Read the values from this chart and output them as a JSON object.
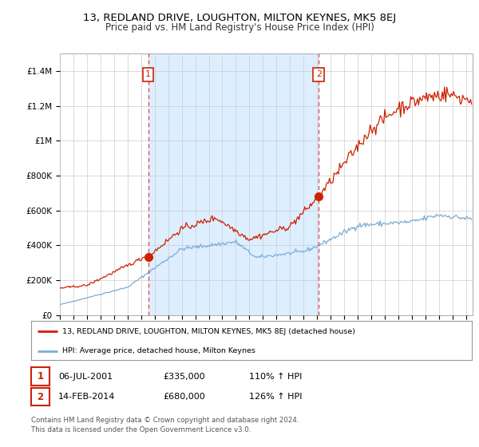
{
  "title": "13, REDLAND DRIVE, LOUGHTON, MILTON KEYNES, MK5 8EJ",
  "subtitle": "Price paid vs. HM Land Registry's House Price Index (HPI)",
  "ylabel_ticks": [
    "£0",
    "£200K",
    "£400K",
    "£600K",
    "£800K",
    "£1M",
    "£1.2M",
    "£1.4M"
  ],
  "ytick_vals": [
    0,
    200000,
    400000,
    600000,
    800000,
    1000000,
    1200000,
    1400000
  ],
  "ylim": [
    0,
    1500000
  ],
  "sale1_date": 2001.52,
  "sale1_price": 335000,
  "sale2_date": 2014.12,
  "sale2_price": 680000,
  "legend_line1": "13, REDLAND DRIVE, LOUGHTON, MILTON KEYNES, MK5 8EJ (detached house)",
  "legend_line2": "HPI: Average price, detached house, Milton Keynes",
  "footnote": "Contains HM Land Registry data © Crown copyright and database right 2024.\nThis data is licensed under the Open Government Licence v3.0.",
  "hpi_color": "#7aadd4",
  "price_color": "#cc2200",
  "vline_color": "#dd4444",
  "shade_color": "#ddeeff",
  "background_color": "#ffffff",
  "grid_color": "#cccccc",
  "table_row1": [
    "1",
    "06-JUL-2001",
    "£335,000",
    "110% ↑ HPI"
  ],
  "table_row2": [
    "2",
    "14-FEB-2014",
    "£680,000",
    "126% ↑ HPI"
  ],
  "xlim_start": 1995.0,
  "xlim_end": 2025.5
}
